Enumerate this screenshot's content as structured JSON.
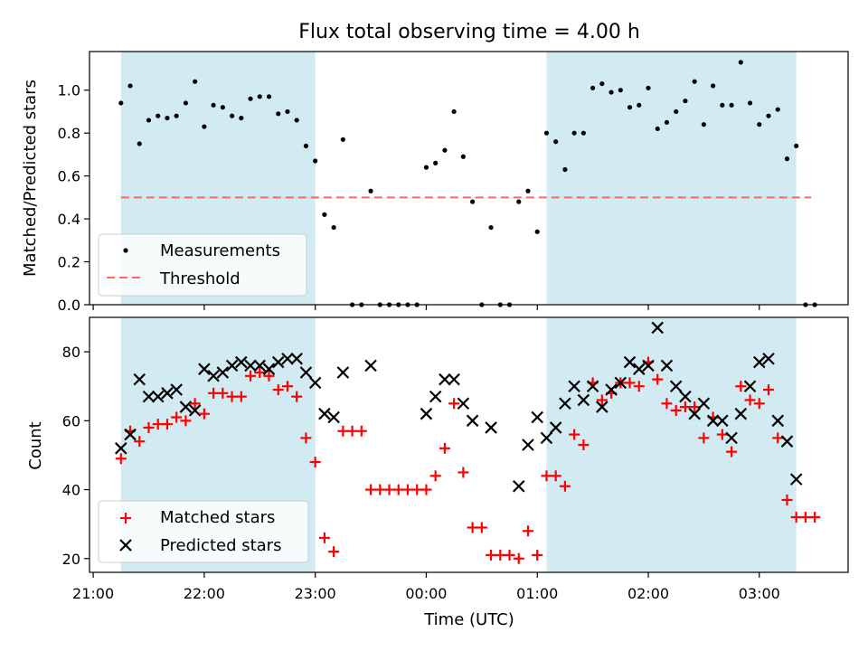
{
  "figure_title": "Flux total observing time = 4.00 h",
  "colors": {
    "shade": "#add8e6",
    "measurement": "#000000",
    "threshold": "#ff6666",
    "matched": "#ff0000",
    "predicted": "#000000"
  },
  "shaded_intervals": [
    [
      "21:15",
      "23:00"
    ],
    [
      "01:05",
      "03:20"
    ]
  ],
  "chart_data": [
    {
      "type": "scatter",
      "title": "Flux total observing time = 4.00 h",
      "xlabel": "",
      "ylabel": "Matched/Predicted stars",
      "xlim": [
        "20:58",
        "03:48"
      ],
      "ylim": [
        0,
        1.18
      ],
      "y_ticks": [
        "0.0",
        "0.2",
        "0.4",
        "0.6",
        "0.8",
        "1.0"
      ],
      "grid": false,
      "legend_position": "lower-left",
      "threshold": {
        "name": "Threshold",
        "y": 0.5,
        "x_range": [
          "21:15",
          "03:28"
        ]
      },
      "series": [
        {
          "name": "Measurements",
          "points": [
            [
              "21:15",
              0.94
            ],
            [
              "21:20",
              1.02
            ],
            [
              "21:25",
              0.75
            ],
            [
              "21:30",
              0.86
            ],
            [
              "21:35",
              0.88
            ],
            [
              "21:40",
              0.87
            ],
            [
              "21:45",
              0.88
            ],
            [
              "21:50",
              0.94
            ],
            [
              "21:55",
              1.04
            ],
            [
              "22:00",
              0.83
            ],
            [
              "22:05",
              0.93
            ],
            [
              "22:10",
              0.92
            ],
            [
              "22:15",
              0.88
            ],
            [
              "22:20",
              0.87
            ],
            [
              "22:25",
              0.96
            ],
            [
              "22:30",
              0.97
            ],
            [
              "22:35",
              0.97
            ],
            [
              "22:40",
              0.89
            ],
            [
              "22:45",
              0.9
            ],
            [
              "22:50",
              0.86
            ],
            [
              "22:55",
              0.74
            ],
            [
              "23:00",
              0.67
            ],
            [
              "23:05",
              0.42
            ],
            [
              "23:10",
              0.36
            ],
            [
              "23:15",
              0.77
            ],
            [
              "23:20",
              0.0
            ],
            [
              "23:25",
              0.0
            ],
            [
              "23:30",
              0.53
            ],
            [
              "23:35",
              0.0
            ],
            [
              "23:40",
              0.0
            ],
            [
              "23:45",
              0.0
            ],
            [
              "23:50",
              0.0
            ],
            [
              "23:55",
              0.0
            ],
            [
              "00:00",
              0.64
            ],
            [
              "00:05",
              0.66
            ],
            [
              "00:10",
              0.72
            ],
            [
              "00:15",
              0.9
            ],
            [
              "00:20",
              0.69
            ],
            [
              "00:25",
              0.48
            ],
            [
              "00:30",
              0.0
            ],
            [
              "00:35",
              0.36
            ],
            [
              "00:40",
              0.0
            ],
            [
              "00:45",
              0.0
            ],
            [
              "00:50",
              0.48
            ],
            [
              "00:55",
              0.53
            ],
            [
              "01:00",
              0.34
            ],
            [
              "01:05",
              0.8
            ],
            [
              "01:10",
              0.76
            ],
            [
              "01:15",
              0.63
            ],
            [
              "01:20",
              0.8
            ],
            [
              "01:25",
              0.8
            ],
            [
              "01:30",
              1.01
            ],
            [
              "01:35",
              1.03
            ],
            [
              "01:40",
              0.99
            ],
            [
              "01:45",
              1.0
            ],
            [
              "01:50",
              0.92
            ],
            [
              "01:55",
              0.93
            ],
            [
              "02:00",
              1.01
            ],
            [
              "02:05",
              0.82
            ],
            [
              "02:10",
              0.85
            ],
            [
              "02:15",
              0.9
            ],
            [
              "02:20",
              0.95
            ],
            [
              "02:25",
              1.04
            ],
            [
              "02:30",
              0.84
            ],
            [
              "02:35",
              1.02
            ],
            [
              "02:40",
              0.93
            ],
            [
              "02:45",
              0.93
            ],
            [
              "02:50",
              1.13
            ],
            [
              "02:55",
              0.94
            ],
            [
              "03:00",
              0.84
            ],
            [
              "03:05",
              0.88
            ],
            [
              "03:10",
              0.91
            ],
            [
              "03:15",
              0.68
            ],
            [
              "03:20",
              0.74
            ],
            [
              "03:25",
              0.0
            ],
            [
              "03:30",
              0.0
            ]
          ]
        }
      ],
      "legend": [
        {
          "label": "Measurements",
          "marker": "dot"
        },
        {
          "label": "Threshold",
          "marker": "dashed-line"
        }
      ]
    },
    {
      "type": "scatter",
      "title": "",
      "xlabel": "Time (UTC)",
      "ylabel": "Count",
      "xlim": [
        "20:58",
        "03:48"
      ],
      "ylim": [
        16,
        90
      ],
      "x_ticks": [
        "21:00",
        "22:00",
        "23:00",
        "00:00",
        "01:00",
        "02:00",
        "03:00"
      ],
      "y_ticks": [
        "20",
        "40",
        "60",
        "80"
      ],
      "grid": false,
      "legend_position": "lower-left",
      "x": [
        "21:15",
        "21:20",
        "21:25",
        "21:30",
        "21:35",
        "21:40",
        "21:45",
        "21:50",
        "21:55",
        "22:00",
        "22:05",
        "22:10",
        "22:15",
        "22:20",
        "22:25",
        "22:30",
        "22:35",
        "22:40",
        "22:45",
        "22:50",
        "22:55",
        "23:00",
        "23:05",
        "23:10",
        "23:15",
        "23:20",
        "23:25",
        "23:30",
        "23:35",
        "23:40",
        "23:45",
        "23:50",
        "23:55",
        "00:00",
        "00:05",
        "00:10",
        "00:15",
        "00:20",
        "00:25",
        "00:30",
        "00:35",
        "00:40",
        "00:45",
        "00:50",
        "00:55",
        "01:00",
        "01:05",
        "01:10",
        "01:15",
        "01:20",
        "01:25",
        "01:30",
        "01:35",
        "01:40",
        "01:45",
        "01:50",
        "01:55",
        "02:00",
        "02:05",
        "02:10",
        "02:15",
        "02:20",
        "02:25",
        "02:30",
        "02:35",
        "02:40",
        "02:45",
        "02:50",
        "02:55",
        "03:00",
        "03:05",
        "03:10",
        "03:15",
        "03:20",
        "03:25",
        "03:30"
      ],
      "series": [
        {
          "name": "Matched stars",
          "marker": "plus",
          "values": [
            49,
            57,
            54,
            58,
            59,
            59,
            61,
            60,
            65,
            62,
            68,
            68,
            67,
            67,
            73,
            74,
            73,
            69,
            70,
            67,
            55,
            48,
            26,
            22,
            57,
            57,
            57,
            40,
            40,
            40,
            40,
            40,
            40,
            40,
            44,
            52,
            65,
            45,
            29,
            29,
            21,
            21,
            21,
            20,
            28,
            21,
            44,
            44,
            41,
            56,
            53,
            71,
            66,
            68,
            71,
            71,
            70,
            77,
            72,
            65,
            63,
            64,
            64,
            55,
            61,
            56,
            51,
            70,
            66,
            65,
            69,
            55,
            37,
            32,
            32,
            32
          ]
        },
        {
          "name": "Predicted stars",
          "marker": "x",
          "values": [
            52,
            56,
            72,
            67,
            67,
            68,
            69,
            64,
            63,
            75,
            73,
            74,
            76,
            77,
            76,
            76,
            75,
            77,
            78,
            78,
            74,
            71,
            62,
            61,
            74,
            null,
            null,
            76,
            null,
            null,
            null,
            null,
            null,
            62,
            67,
            72,
            72,
            65,
            60,
            null,
            58,
            null,
            null,
            41,
            53,
            61,
            55,
            58,
            65,
            70,
            66,
            70,
            64,
            69,
            71,
            77,
            75,
            76,
            87,
            76,
            70,
            67,
            62,
            65,
            60,
            60,
            55,
            62,
            70,
            77,
            78,
            60,
            54,
            43,
            null,
            null
          ]
        }
      ],
      "legend": [
        {
          "label": "Matched stars",
          "marker": "plus"
        },
        {
          "label": "Predicted stars",
          "marker": "x"
        }
      ]
    }
  ]
}
